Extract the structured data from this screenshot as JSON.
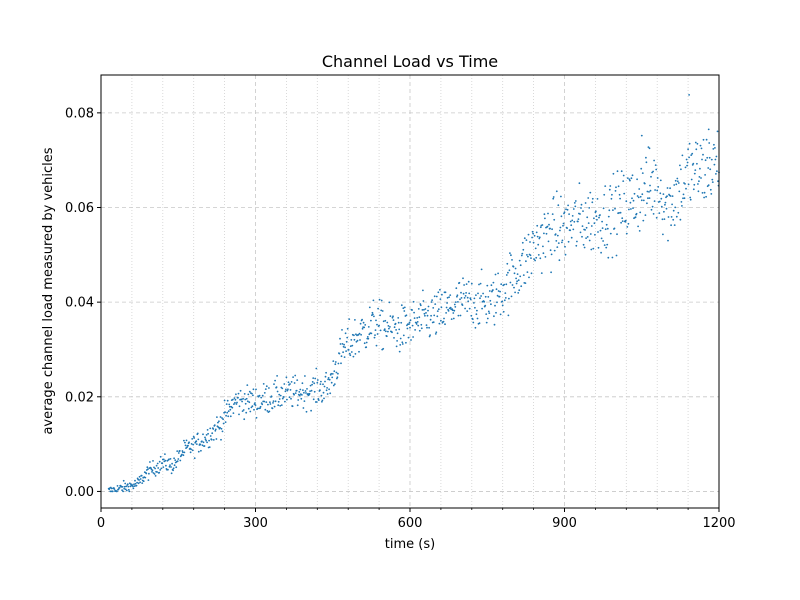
{
  "chart_data": {
    "type": "scatter",
    "title": "Channel Load vs Time",
    "xlabel": "time (s)",
    "ylabel": "average channel load measured by vehicles",
    "xlim": [
      0,
      1200
    ],
    "ylim": [
      -0.0035,
      0.088
    ],
    "xticks": [
      0,
      300,
      600,
      900,
      1200
    ],
    "yticks": [
      0.0,
      0.02,
      0.04,
      0.06,
      0.08
    ],
    "ytick_labels": [
      "0.00",
      "0.02",
      "0.04",
      "0.06",
      "0.08"
    ],
    "x_minor_step": 60,
    "grid": {
      "major": "dashed",
      "minor": "dotted"
    },
    "marker_color": "#1f77b4",
    "series": [
      {
        "x_start": 15,
        "x_end": 1200,
        "x_step": 1,
        "note_trend": "piecewise trend with noise",
        "trend_points": [
          [
            15,
            0.0
          ],
          [
            70,
            0.0015
          ],
          [
            90,
            0.004
          ],
          [
            120,
            0.006
          ],
          [
            140,
            0.0055
          ],
          [
            160,
            0.0085
          ],
          [
            200,
            0.011
          ],
          [
            230,
            0.014
          ],
          [
            260,
            0.019
          ],
          [
            300,
            0.019
          ],
          [
            350,
            0.0205
          ],
          [
            420,
            0.0215
          ],
          [
            440,
            0.022
          ],
          [
            470,
            0.03
          ],
          [
            500,
            0.033
          ],
          [
            530,
            0.0355
          ],
          [
            580,
            0.034
          ],
          [
            620,
            0.036
          ],
          [
            660,
            0.0375
          ],
          [
            700,
            0.04
          ],
          [
            760,
            0.04
          ],
          [
            790,
            0.044
          ],
          [
            820,
            0.048
          ],
          [
            850,
            0.053
          ],
          [
            880,
            0.055
          ],
          [
            930,
            0.057
          ],
          [
            980,
            0.058
          ],
          [
            1040,
            0.062
          ],
          [
            1080,
            0.065
          ],
          [
            1100,
            0.06
          ],
          [
            1140,
            0.067
          ],
          [
            1200,
            0.069
          ]
        ],
        "outliers": [
          [
            1142,
            0.0838
          ],
          [
            1180,
            0.0765
          ],
          [
            1050,
            0.0752
          ],
          [
            1065,
            0.0725
          ]
        ]
      }
    ]
  }
}
